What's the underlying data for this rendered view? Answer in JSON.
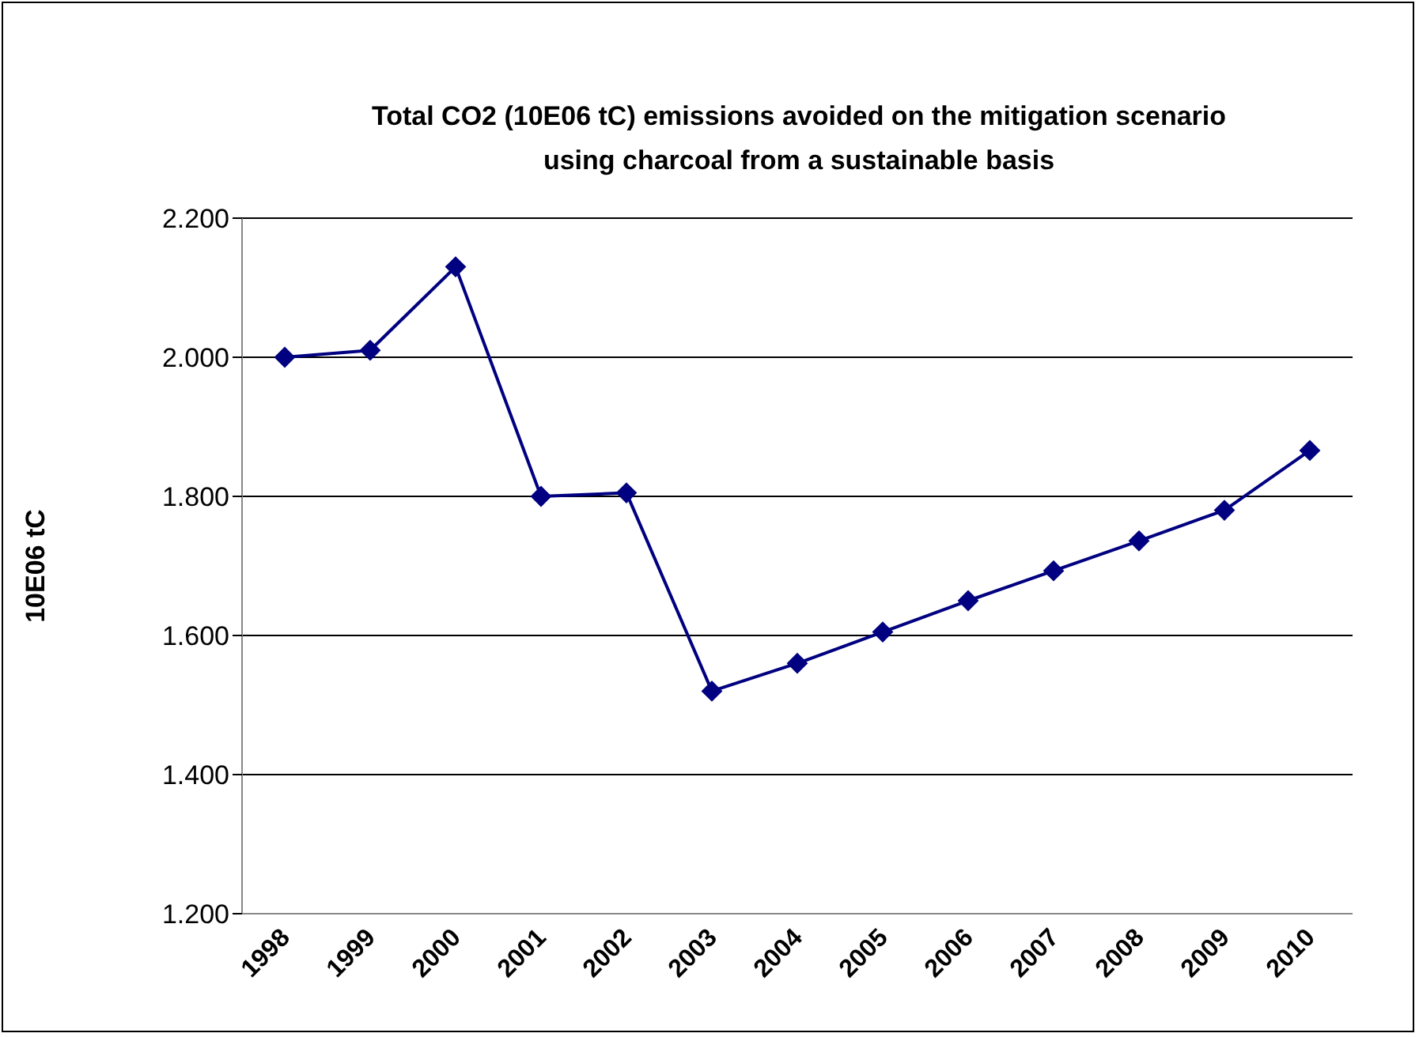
{
  "chart_data": {
    "type": "line",
    "title": "Total CO2 (10E06 tC) emissions avoided on the mitigation scenario\nusing charcoal from a sustainable basis",
    "ylabel": "10E06 tC",
    "categories": [
      "1998",
      "1999",
      "2000",
      "2001",
      "2002",
      "2003",
      "2004",
      "2005",
      "2006",
      "2007",
      "2008",
      "2009",
      "2010"
    ],
    "series": [
      {
        "color": "#000080",
        "values": [
          2.0,
          2.01,
          2.13,
          1.8,
          1.805,
          1.52,
          1.56,
          1.605,
          1.65,
          1.693,
          1.736,
          1.78,
          1.866
        ]
      }
    ],
    "ylim": [
      1.2,
      2.2
    ],
    "yticks": [
      {
        "value": 1.2,
        "label": "1.200"
      },
      {
        "value": 1.4,
        "label": "1.400"
      },
      {
        "value": 1.6,
        "label": "1.600"
      },
      {
        "value": 1.8,
        "label": "1.800"
      },
      {
        "value": 2.0,
        "label": "2.000"
      },
      {
        "value": 2.2,
        "label": "2.200"
      }
    ],
    "grid": "y",
    "marker": "diamond"
  }
}
